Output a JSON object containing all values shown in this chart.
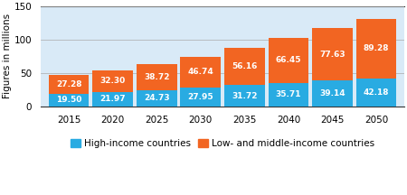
{
  "years": [
    2015,
    2020,
    2025,
    2030,
    2035,
    2040,
    2045,
    2050
  ],
  "hic": [
    19.5,
    21.97,
    24.73,
    27.95,
    31.72,
    35.71,
    39.14,
    42.18
  ],
  "lmic": [
    27.28,
    32.3,
    38.72,
    46.74,
    56.16,
    66.45,
    77.63,
    89.28
  ],
  "hic_color": "#29abe2",
  "lmic_color": "#f26522",
  "background_color": "#d9eaf7",
  "ylim": [
    0,
    150
  ],
  "yticks": [
    0,
    50,
    100,
    150
  ],
  "ylabel": "Figures in millions",
  "legend_hic": "High-income countries",
  "legend_lmic": "Low- and middle-income countries",
  "label_color": "#ffffff",
  "label_fontsize": 6.5,
  "axis_label_fontsize": 7.5,
  "legend_fontsize": 7.5,
  "bar_width": 4.6
}
